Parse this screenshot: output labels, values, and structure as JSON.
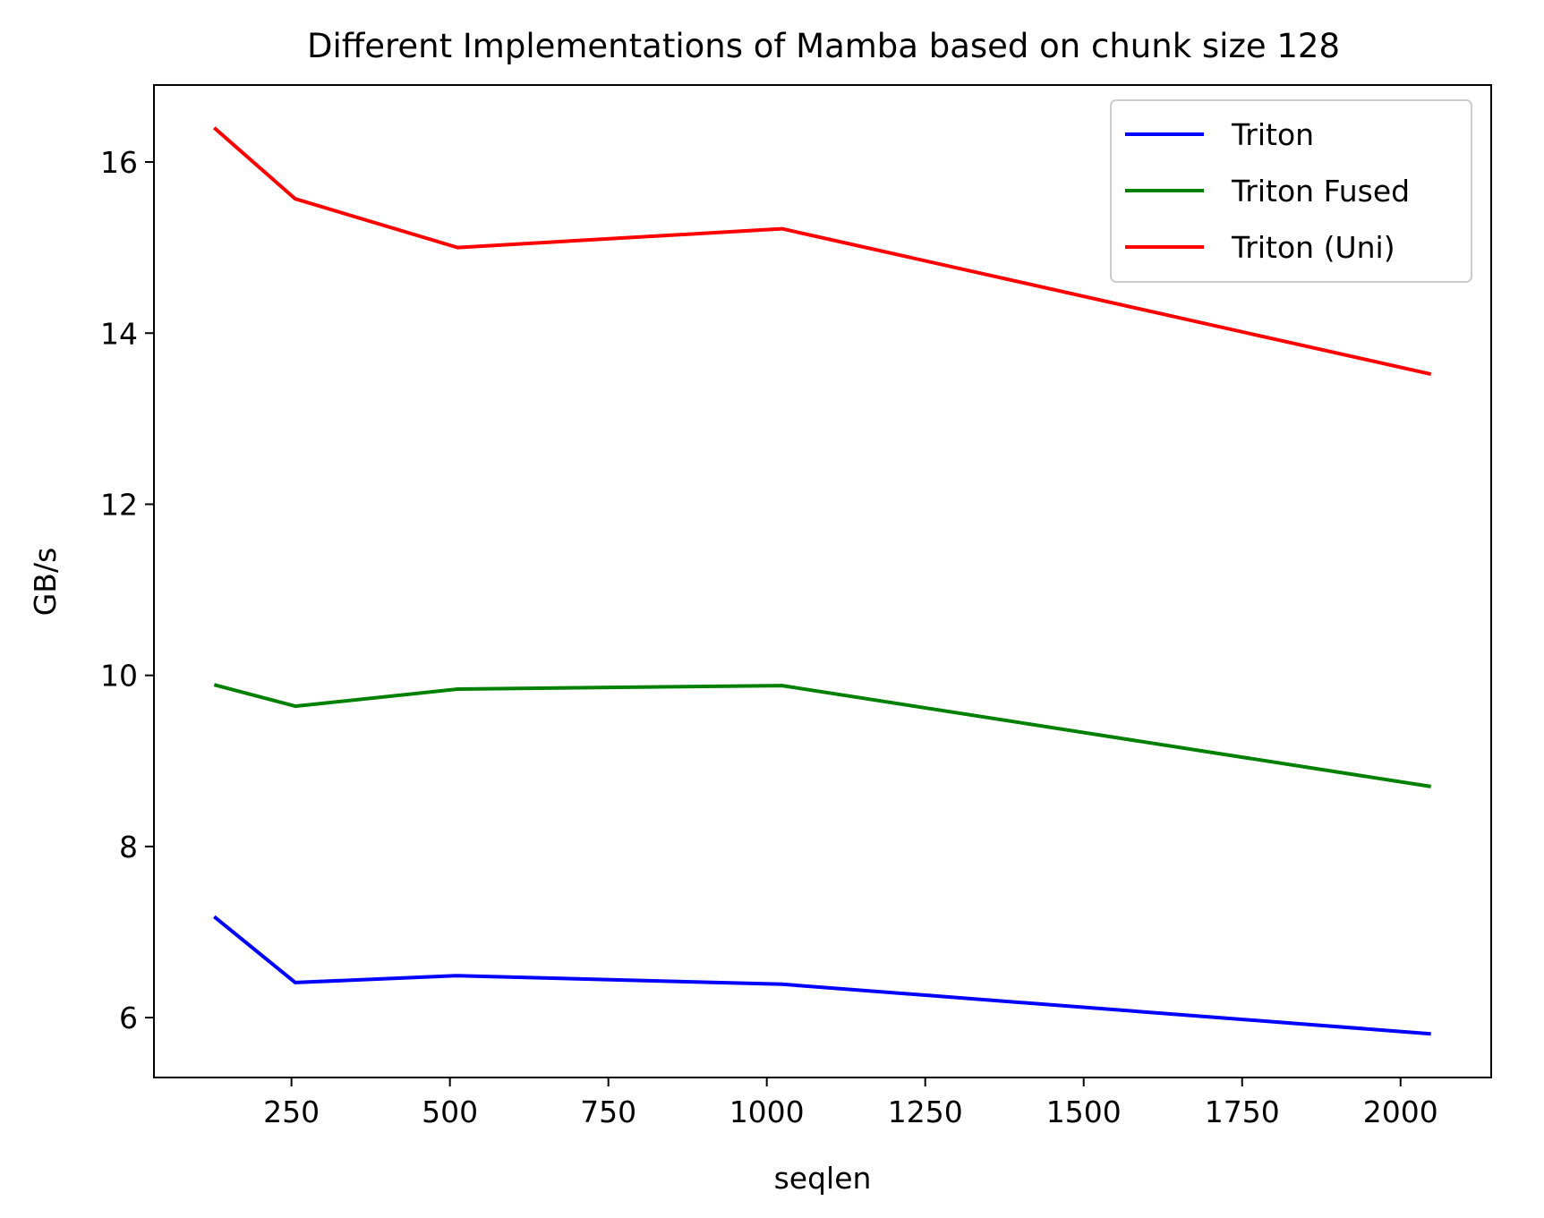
{
  "chart_data": {
    "type": "line",
    "title": "Different Implementations of Mamba based on chunk size 128",
    "xlabel": "seqlen",
    "ylabel": "GB/s",
    "x": [
      128,
      256,
      512,
      1024,
      2048
    ],
    "xlim": [
      33,
      2143
    ],
    "ylim": [
      5.3,
      16.9
    ],
    "xticks": [
      250,
      500,
      750,
      1000,
      1250,
      1500,
      1750,
      2000
    ],
    "yticks": [
      6,
      8,
      10,
      12,
      14,
      16
    ],
    "grid": false,
    "legend_position": "top-right",
    "series": [
      {
        "name": "Triton",
        "color": "#0000ff",
        "values": [
          7.18,
          6.41,
          6.49,
          6.39,
          5.81
        ]
      },
      {
        "name": "Triton Fused",
        "color": "#008000",
        "values": [
          9.89,
          9.64,
          9.84,
          9.88,
          8.7
        ]
      },
      {
        "name": "Triton (Uni)",
        "color": "#ff0000",
        "values": [
          16.4,
          15.57,
          15.0,
          15.22,
          13.52
        ]
      }
    ]
  }
}
